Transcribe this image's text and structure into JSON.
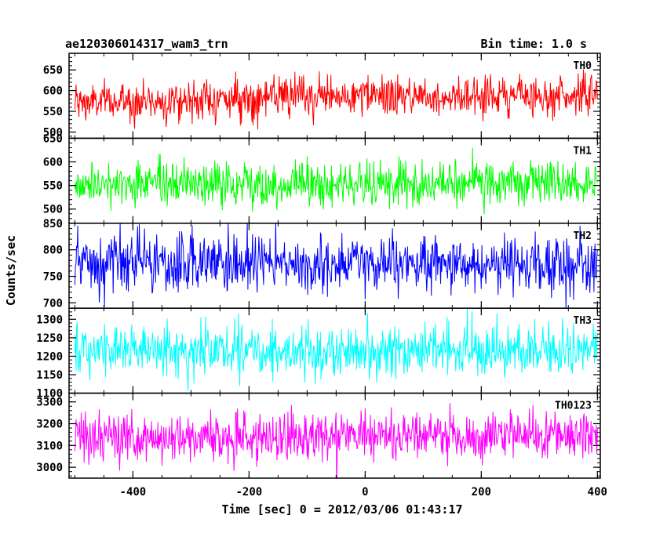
{
  "title_left": "ae120306014317_wam3_trn",
  "title_right": "Bin time: 1.0 s",
  "xlabel": "Time [sec] 0 = 2012/03/06 01:43:17",
  "ylabel": "Counts/sec",
  "chart_data": {
    "type": "line",
    "title": "ae120306014317_wam3_trn",
    "bin_time": "Bin time: 1.0 s",
    "xlabel": "Time [sec] 0 = 2012/03/06 01:43:17",
    "ylabel": "Counts/sec",
    "xlim": [
      -510,
      405
    ],
    "x_range_data": [
      -500,
      400
    ],
    "x_step": 1.0,
    "xticks": [
      -400,
      -200,
      0,
      200,
      400
    ],
    "grid": false,
    "panels": [
      {
        "name": "TH0",
        "color": "#ff0000",
        "ylim": [
          485,
          690
        ],
        "yticks": [
          500,
          550,
          600,
          650
        ],
        "mean": 578,
        "sigma": 24,
        "trend": [
          [
            -500,
            570
          ],
          [
            -100,
            585
          ],
          [
            400,
            590
          ]
        ]
      },
      {
        "name": "TH1",
        "color": "#00ff00",
        "ylim": [
          470,
          650
        ],
        "yticks": [
          500,
          550,
          600,
          650
        ],
        "mean": 553,
        "sigma": 24,
        "trend": [
          [
            -500,
            553
          ],
          [
            400,
            553
          ]
        ]
      },
      {
        "name": "TH2",
        "color": "#0000ff",
        "ylim": [
          690,
          850
        ],
        "yticks": [
          700,
          750,
          800,
          850
        ],
        "mean": 772,
        "sigma": 28,
        "trend": [
          [
            -500,
            772
          ],
          [
            400,
            772
          ]
        ]
      },
      {
        "name": "TH3",
        "color": "#00ffff",
        "ylim": [
          1100,
          1330
        ],
        "yticks": [
          1100,
          1150,
          1200,
          1250,
          1300
        ],
        "mean": 1215,
        "sigma": 35,
        "trend": [
          [
            -500,
            1215
          ],
          [
            400,
            1215
          ]
        ]
      },
      {
        "name": "TH0123",
        "color": "#ff00ff",
        "ylim": [
          2950,
          3340
        ],
        "yticks": [
          3000,
          3100,
          3200,
          3300
        ],
        "mean": 3140,
        "sigma": 58,
        "trend": [
          [
            -500,
            3135
          ],
          [
            400,
            3145
          ]
        ]
      }
    ]
  }
}
